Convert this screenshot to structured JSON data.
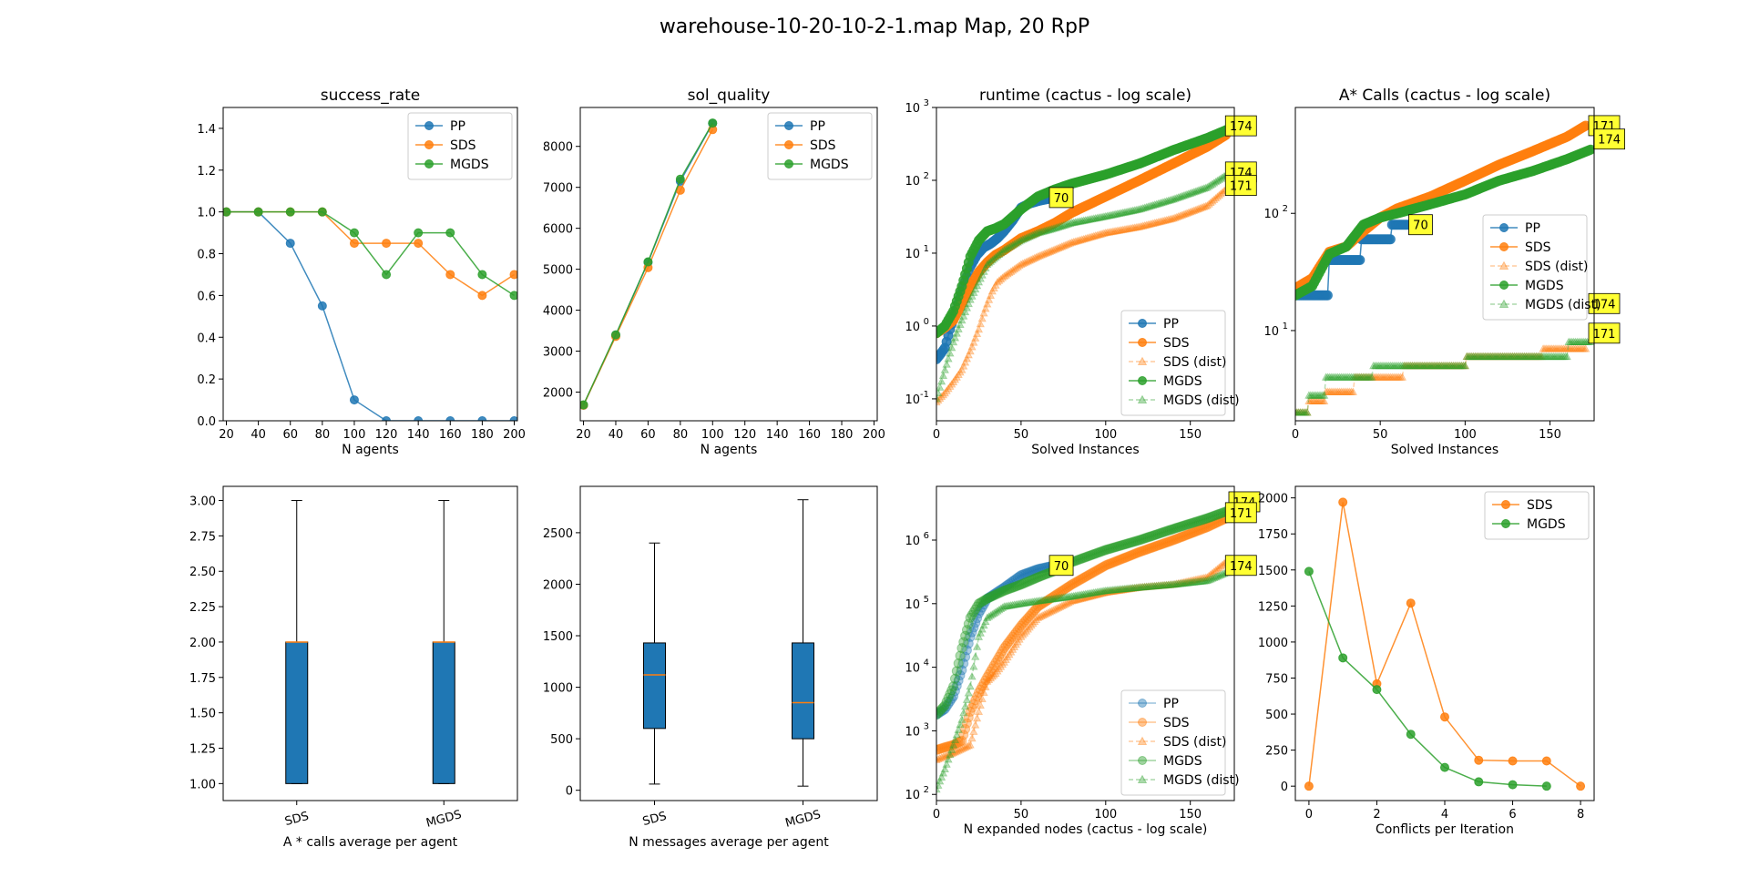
{
  "figure_title": "warehouse-10-20-10-2-1.map Map, 20 RpP",
  "colors": {
    "PP": "#1f77b4",
    "SDS": "#ff7f0e",
    "MGDS": "#2ca02c",
    "annotation": "#ffff33",
    "box": "#1f77b4",
    "median": "#ff7f0e"
  },
  "chart_data": [
    {
      "type": "line",
      "title": "success_rate",
      "xlabel": "N agents",
      "ylabel": "",
      "xlim": [
        18,
        202
      ],
      "ylim": [
        0,
        1.5
      ],
      "xticks": [
        "20",
        "40",
        "60",
        "80",
        "100",
        "120",
        "140",
        "160",
        "180",
        "200"
      ],
      "yticks": [
        "0.0",
        "0.2",
        "0.4",
        "0.6",
        "0.8",
        "1.0",
        "1.2",
        "1.4"
      ],
      "legend": "top-right",
      "series": [
        {
          "name": "PP",
          "x": [
            20,
            40,
            60,
            80,
            100,
            120,
            140,
            160,
            180,
            200
          ],
          "values": [
            1.0,
            1.0,
            0.85,
            0.55,
            0.1,
            0.0,
            0.0,
            0.0,
            0.0,
            0.0
          ]
        },
        {
          "name": "SDS",
          "x": [
            20,
            40,
            60,
            80,
            100,
            120,
            140,
            160,
            180,
            200
          ],
          "values": [
            1.0,
            1.0,
            1.0,
            1.0,
            0.85,
            0.85,
            0.85,
            0.7,
            0.6,
            0.7
          ]
        },
        {
          "name": "MGDS",
          "x": [
            20,
            40,
            60,
            80,
            100,
            120,
            140,
            160,
            180,
            200
          ],
          "values": [
            1.0,
            1.0,
            1.0,
            1.0,
            0.9,
            0.7,
            0.9,
            0.9,
            0.7,
            0.6
          ]
        }
      ]
    },
    {
      "type": "line",
      "title": "sol_quality",
      "xlabel": "N agents",
      "ylabel": "",
      "xlim": [
        18,
        202
      ],
      "ylim": [
        1300,
        8950
      ],
      "xticks": [
        "20",
        "40",
        "60",
        "80",
        "100",
        "120",
        "140",
        "160",
        "180",
        "200"
      ],
      "yticks": [
        "2000",
        "3000",
        "4000",
        "5000",
        "6000",
        "7000",
        "8000"
      ],
      "legend": "top-right",
      "series": [
        {
          "name": "PP",
          "x": [
            20,
            40,
            60,
            80,
            100
          ],
          "values": [
            1680,
            3390,
            5170,
            7150,
            8560
          ]
        },
        {
          "name": "SDS",
          "x": [
            20,
            40,
            60,
            80,
            100
          ],
          "values": [
            1680,
            3360,
            5040,
            6930,
            8410
          ]
        },
        {
          "name": "MGDS",
          "x": [
            20,
            40,
            60,
            80,
            100
          ],
          "values": [
            1690,
            3400,
            5180,
            7200,
            8570
          ]
        }
      ]
    },
    {
      "type": "line",
      "title": "runtime (cactus - log scale)",
      "xlabel": "Solved Instances",
      "ylabel": "",
      "log_y": true,
      "xlim": [
        0,
        176
      ],
      "ylim": [
        0.05,
        1000
      ],
      "xticks": [
        "0",
        "50",
        "100",
        "150"
      ],
      "yticks": [
        "10",
        "10",
        "10",
        "10",
        "10"
      ],
      "ytick_exponents": [
        "-1",
        "0",
        "1",
        "2",
        "3"
      ],
      "legend": "lower-right",
      "series": [
        {
          "name": "PP",
          "marker": "circle",
          "x": [
            0,
            2,
            5,
            8,
            12,
            16,
            20,
            24,
            28,
            32,
            36,
            40,
            45,
            50,
            55,
            60,
            65,
            70
          ],
          "values": [
            0.35,
            0.4,
            0.5,
            0.9,
            1.7,
            3.5,
            6.5,
            9.5,
            12,
            13.5,
            16,
            20,
            28,
            42,
            48,
            52,
            55,
            58
          ]
        },
        {
          "name": "SDS",
          "marker": "circle",
          "x": [
            0,
            5,
            10,
            15,
            20,
            25,
            30,
            35,
            40,
            50,
            60,
            70,
            80,
            100,
            120,
            140,
            160,
            171
          ],
          "values": [
            0.8,
            0.95,
            1.2,
            2.0,
            3.5,
            5.5,
            7.5,
            9.5,
            11,
            16,
            20,
            26,
            36,
            60,
            100,
            170,
            290,
            420
          ]
        },
        {
          "name": "SDS (dist)",
          "marker": "triangle",
          "x": [
            0,
            5,
            10,
            15,
            20,
            25,
            28,
            30,
            33,
            36,
            40,
            50,
            60,
            80,
            100,
            120,
            140,
            160,
            171
          ],
          "values": [
            0.09,
            0.12,
            0.17,
            0.25,
            0.45,
            0.9,
            1.5,
            2.0,
            3.0,
            4.0,
            4.8,
            7,
            9,
            14,
            19,
            23,
            30,
            45,
            75
          ]
        },
        {
          "name": "MGDS",
          "marker": "circle",
          "x": [
            0,
            5,
            10,
            15,
            20,
            25,
            30,
            35,
            40,
            50,
            60,
            70,
            80,
            100,
            120,
            140,
            160,
            174
          ],
          "values": [
            0.8,
            1.0,
            1.6,
            3.5,
            9,
            15,
            20,
            22,
            25,
            40,
            60,
            75,
            90,
            120,
            170,
            260,
            380,
            520
          ]
        },
        {
          "name": "MGDS (dist)",
          "marker": "triangle",
          "x": [
            0,
            5,
            10,
            15,
            20,
            25,
            30,
            40,
            50,
            60,
            70,
            80,
            100,
            120,
            140,
            160,
            174
          ],
          "values": [
            0.1,
            0.25,
            0.6,
            1.2,
            2.3,
            4,
            7,
            11,
            15,
            19,
            22,
            26,
            32,
            40,
            55,
            80,
            130
          ]
        }
      ],
      "annotations": [
        {
          "text": "70",
          "x": 70,
          "y": 58
        },
        {
          "text": "174",
          "x": 174,
          "y": 560
        },
        {
          "text": "174",
          "x": 174,
          "y": 130
        },
        {
          "text": "171",
          "x": 174,
          "y": 85
        }
      ]
    },
    {
      "type": "line",
      "title": "A* Calls (cactus - log scale)",
      "xlabel": "Solved Instances",
      "ylabel": "",
      "log_y": true,
      "xlim": [
        0,
        176
      ],
      "ylim": [
        1.7,
        800
      ],
      "xticks": [
        "0",
        "50",
        "100",
        "150"
      ],
      "yticks": [
        "10",
        "10"
      ],
      "ytick_exponents": [
        "1",
        "2"
      ],
      "legend": "center-right",
      "series": [
        {
          "name": "PP",
          "marker": "circle",
          "x": [
            0,
            19,
            20,
            38,
            39,
            56,
            57,
            70
          ],
          "values": [
            20,
            20,
            40,
            40,
            60,
            60,
            80,
            80
          ]
        },
        {
          "name": "SDS",
          "marker": "circle",
          "x": [
            0,
            10,
            20,
            30,
            40,
            50,
            60,
            80,
            100,
            120,
            140,
            160,
            171
          ],
          "values": [
            23,
            28,
            47,
            52,
            70,
            92,
            110,
            140,
            190,
            260,
            340,
            450,
            560
          ]
        },
        {
          "name": "SDS (dist)",
          "marker": "triangle",
          "x": [
            0,
            7,
            8,
            17,
            18,
            34,
            35,
            63,
            64,
            100,
            101,
            145,
            146,
            171
          ],
          "values": [
            2,
            2,
            2.5,
            2.5,
            3,
            3,
            4,
            4,
            5,
            5,
            6,
            6,
            7,
            7
          ]
        },
        {
          "name": "MGDS",
          "marker": "circle",
          "x": [
            0,
            10,
            20,
            30,
            40,
            50,
            60,
            80,
            100,
            120,
            140,
            160,
            174
          ],
          "values": [
            20,
            24,
            45,
            52,
            80,
            92,
            100,
            120,
            145,
            190,
            230,
            290,
            350
          ]
        },
        {
          "name": "MGDS (dist)",
          "marker": "triangle",
          "x": [
            0,
            7,
            8,
            17,
            18,
            45,
            46,
            100,
            101,
            160,
            161,
            174
          ],
          "values": [
            2,
            2,
            2.8,
            2.8,
            4,
            4,
            5,
            5,
            6,
            6,
            8,
            8
          ]
        }
      ],
      "annotations": [
        {
          "text": "171",
          "x": 176,
          "y": 560
        },
        {
          "text": "174",
          "x": 179,
          "y": 430
        },
        {
          "text": "70",
          "x": 70,
          "y": 80
        },
        {
          "text": "174",
          "x": 176,
          "y": 17
        },
        {
          "text": "171",
          "x": 176,
          "y": 9.5
        }
      ]
    },
    {
      "type": "box",
      "title": "",
      "xlabel": "A * calls average per agent",
      "ylabel": "",
      "ylim": [
        0.88,
        3.1
      ],
      "yticks": [
        "1.00",
        "1.25",
        "1.50",
        "1.75",
        "2.00",
        "2.25",
        "2.50",
        "2.75",
        "3.00"
      ],
      "categories": [
        "SDS",
        "MGDS"
      ],
      "boxes": [
        {
          "whislo": 1.0,
          "q1": 1.0,
          "med": 2.0,
          "q3": 2.0,
          "whishi": 3.0
        },
        {
          "whislo": 1.0,
          "q1": 1.0,
          "med": 2.0,
          "q3": 2.0,
          "whishi": 3.0
        }
      ]
    },
    {
      "type": "box",
      "title": "",
      "xlabel": "N messages average per agent",
      "ylabel": "",
      "ylim": [
        -100,
        2950
      ],
      "yticks": [
        "0",
        "500",
        "1000",
        "1500",
        "2000",
        "2500"
      ],
      "categories": [
        "SDS",
        "MGDS"
      ],
      "boxes": [
        {
          "whislo": 60,
          "q1": 600,
          "med": 1120,
          "q3": 1430,
          "whishi": 2400
        },
        {
          "whislo": 40,
          "q1": 500,
          "med": 850,
          "q3": 1430,
          "whishi": 2820
        }
      ]
    },
    {
      "type": "line",
      "title": "",
      "xlabel": "N expanded nodes (cactus - log scale)",
      "ylabel": "",
      "log_y": true,
      "xlim": [
        0,
        176
      ],
      "ylim": [
        80,
        7000000
      ],
      "xticks": [
        "0",
        "50",
        "100",
        "150"
      ],
      "yticks": [
        "10",
        "10",
        "10",
        "10",
        "10"
      ],
      "ytick_exponents": [
        "2",
        "3",
        "4",
        "5",
        "6"
      ],
      "legend": "lower-right",
      "series": [
        {
          "name": "PP",
          "marker": "circle",
          "x": [
            0,
            5,
            10,
            15,
            20,
            25,
            30,
            40,
            50,
            60,
            70
          ],
          "values": [
            1800,
            2200,
            3500,
            9000,
            30000,
            70000,
            120000,
            180000,
            280000,
            350000,
            400000
          ]
        },
        {
          "name": "SDS",
          "marker": "circle",
          "x": [
            0,
            5,
            10,
            15,
            20,
            25,
            30,
            40,
            50,
            60,
            80,
            100,
            120,
            140,
            160,
            171
          ],
          "values": [
            500,
            550,
            600,
            700,
            2000,
            4000,
            7000,
            20000,
            45000,
            90000,
            200000,
            400000,
            650000,
            1000000,
            1600000,
            2200000
          ]
        },
        {
          "name": "SDS (dist)",
          "marker": "triangle",
          "x": [
            0,
            5,
            10,
            20,
            25,
            28,
            30,
            35,
            40,
            50,
            60,
            80,
            100,
            120,
            140,
            160,
            171
          ],
          "values": [
            350,
            400,
            450,
            600,
            2000,
            4000,
            6000,
            8000,
            12000,
            30000,
            60000,
            110000,
            150000,
            180000,
            200000,
            260000,
            450000
          ]
        },
        {
          "name": "MGDS",
          "marker": "circle",
          "x": [
            0,
            5,
            10,
            15,
            20,
            25,
            30,
            40,
            50,
            60,
            70,
            80,
            100,
            120,
            140,
            160,
            174
          ],
          "values": [
            1800,
            2500,
            5000,
            20000,
            60000,
            100000,
            120000,
            160000,
            200000,
            260000,
            330000,
            450000,
            700000,
            1000000,
            1500000,
            2200000,
            3000000
          ]
        },
        {
          "name": "MGDS (dist)",
          "marker": "triangle",
          "x": [
            0,
            5,
            10,
            15,
            20,
            25,
            30,
            40,
            50,
            60,
            80,
            100,
            120,
            140,
            160,
            174
          ],
          "values": [
            120,
            250,
            600,
            1500,
            5000,
            30000,
            60000,
            90000,
            100000,
            110000,
            130000,
            160000,
            180000,
            200000,
            230000,
            330000
          ]
        }
      ],
      "annotations": [
        {
          "text": "70",
          "x": 70,
          "y": 400000
        },
        {
          "text": "174",
          "x": 176,
          "y": 4000000
        },
        {
          "text": "171",
          "x": 174,
          "y": 2700000
        },
        {
          "text": "174",
          "x": 174,
          "y": 400000
        }
      ]
    },
    {
      "type": "line",
      "title": "",
      "xlabel": "Conflicts per Iteration",
      "ylabel": "",
      "xlim": [
        -0.4,
        8.4
      ],
      "ylim": [
        -100,
        2080
      ],
      "xticks": [
        "0",
        "2",
        "4",
        "6",
        "8"
      ],
      "yticks": [
        "0",
        "250",
        "500",
        "750",
        "1000",
        "1250",
        "1500",
        "1750",
        "2000"
      ],
      "legend": "top-right",
      "series": [
        {
          "name": "SDS",
          "x": [
            0,
            1,
            2,
            3,
            4,
            5,
            6,
            7,
            8
          ],
          "values": [
            0,
            1970,
            710,
            1270,
            480,
            180,
            175,
            175,
            0
          ]
        },
        {
          "name": "MGDS",
          "x": [
            0,
            1,
            2,
            3,
            4,
            5,
            6,
            7
          ],
          "values": [
            1490,
            890,
            670,
            360,
            130,
            30,
            10,
            0
          ]
        }
      ]
    }
  ]
}
